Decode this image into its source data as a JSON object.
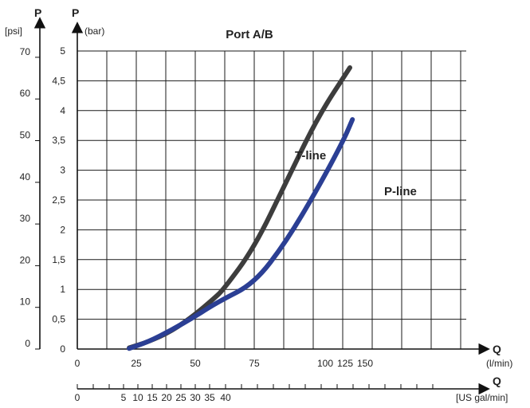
{
  "chart_data": {
    "type": "line",
    "title": "Port A/B",
    "y_axes": [
      {
        "symbol": "P",
        "unit": "[psi]",
        "range": [
          0,
          70
        ],
        "ticks": [
          "0",
          "10",
          "20",
          "30",
          "40",
          "50",
          "60",
          "70"
        ]
      },
      {
        "symbol": "P",
        "unit": "(bar)",
        "range": [
          0,
          5
        ],
        "ticks": [
          "0",
          "0,5",
          "1",
          "1,5",
          "2",
          "2,5",
          "3",
          "3,5",
          "4",
          "4,5",
          "5"
        ]
      }
    ],
    "x_axes": [
      {
        "symbol": "Q",
        "unit": "(l/min)",
        "ticks": [
          "0",
          "25",
          "50",
          "75",
          "100",
          "125",
          "150"
        ]
      },
      {
        "symbol": "Q",
        "unit": "[US gal/min]",
        "ticks": [
          "0",
          "5",
          "10",
          "15",
          "20",
          "25",
          "30",
          "35",
          "40"
        ]
      }
    ],
    "grid": true,
    "series": [
      {
        "name": "T-line",
        "color": "#3d3d3d",
        "points": [
          [
            22,
            0.02
          ],
          [
            30,
            0.12
          ],
          [
            40,
            0.3
          ],
          [
            50,
            0.58
          ],
          [
            58,
            0.85
          ],
          [
            62,
            1.0
          ],
          [
            75,
            1.7
          ],
          [
            100,
            2.8
          ],
          [
            125,
            3.9
          ],
          [
            150,
            4.72
          ]
        ]
      },
      {
        "name": "P-line",
        "color": "#2b3f94",
        "points": [
          [
            22,
            0.01
          ],
          [
            30,
            0.12
          ],
          [
            40,
            0.32
          ],
          [
            50,
            0.55
          ],
          [
            60,
            0.8
          ],
          [
            75,
            1.1
          ],
          [
            100,
            1.8
          ],
          [
            125,
            2.7
          ],
          [
            145,
            3.5
          ],
          [
            152,
            3.85
          ]
        ]
      }
    ]
  }
}
